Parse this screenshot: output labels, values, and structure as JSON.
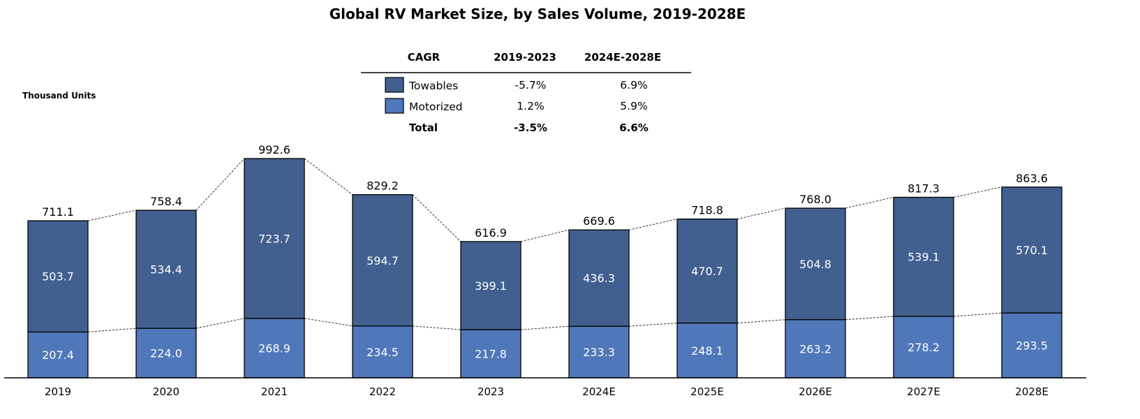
{
  "chart_data": {
    "type": "bar",
    "stacked": true,
    "title": "Global RV Market Size, by Sales Volume, 2019-2028E",
    "ylabel": "Thousand Units",
    "xlabel": "",
    "ylim": [
      0,
      1000
    ],
    "grid": false,
    "categories": [
      "2019",
      "2020",
      "2021",
      "2022",
      "2023",
      "2024E",
      "2025E",
      "2026E",
      "2027E",
      "2028E"
    ],
    "series": [
      {
        "name": "Motorized",
        "color": "#4f77b9",
        "values": [
          207.4,
          224.0,
          268.9,
          234.5,
          217.8,
          233.3,
          248.1,
          263.2,
          278.2,
          293.5
        ]
      },
      {
        "name": "Towables",
        "color": "#41608f",
        "values": [
          503.7,
          534.4,
          723.7,
          594.7,
          399.1,
          436.3,
          470.7,
          504.8,
          539.1,
          570.1
        ]
      }
    ],
    "totals": [
      711.1,
      758.4,
      992.6,
      829.2,
      616.9,
      669.6,
      718.8,
      768.0,
      817.3,
      863.6
    ],
    "segment_labels": {
      "Motorized": [
        "207.4",
        "224.0",
        "268.9",
        "234.5",
        "217.8",
        "233.3",
        "248.1",
        "263.2",
        "278.2",
        "293.5"
      ],
      "Towables": [
        "503.7",
        "534.4",
        "723.7",
        "594.7",
        "399.1",
        "436.3",
        "470.7",
        "504.8",
        "539.1",
        "570.1"
      ]
    },
    "total_labels": [
      "711.1",
      "758.4",
      "992.6",
      "829.2",
      "616.9",
      "669.6",
      "718.8",
      "768.0",
      "817.3",
      "863.6"
    ],
    "legend": {
      "placement": "top-center",
      "header": [
        "CAGR",
        "2019-2023",
        "2024E-2028E"
      ],
      "rows": [
        {
          "name": "Towables",
          "color": "#41608f",
          "cagr_hist": "-5.7%",
          "cagr_fcst": "6.9%"
        },
        {
          "name": "Motorized",
          "color": "#4f77b9",
          "cagr_hist": "1.2%",
          "cagr_fcst": "5.9%"
        },
        {
          "name": "Total",
          "color": null,
          "cagr_hist": "-3.5%",
          "cagr_fcst": "6.6%"
        }
      ]
    }
  }
}
